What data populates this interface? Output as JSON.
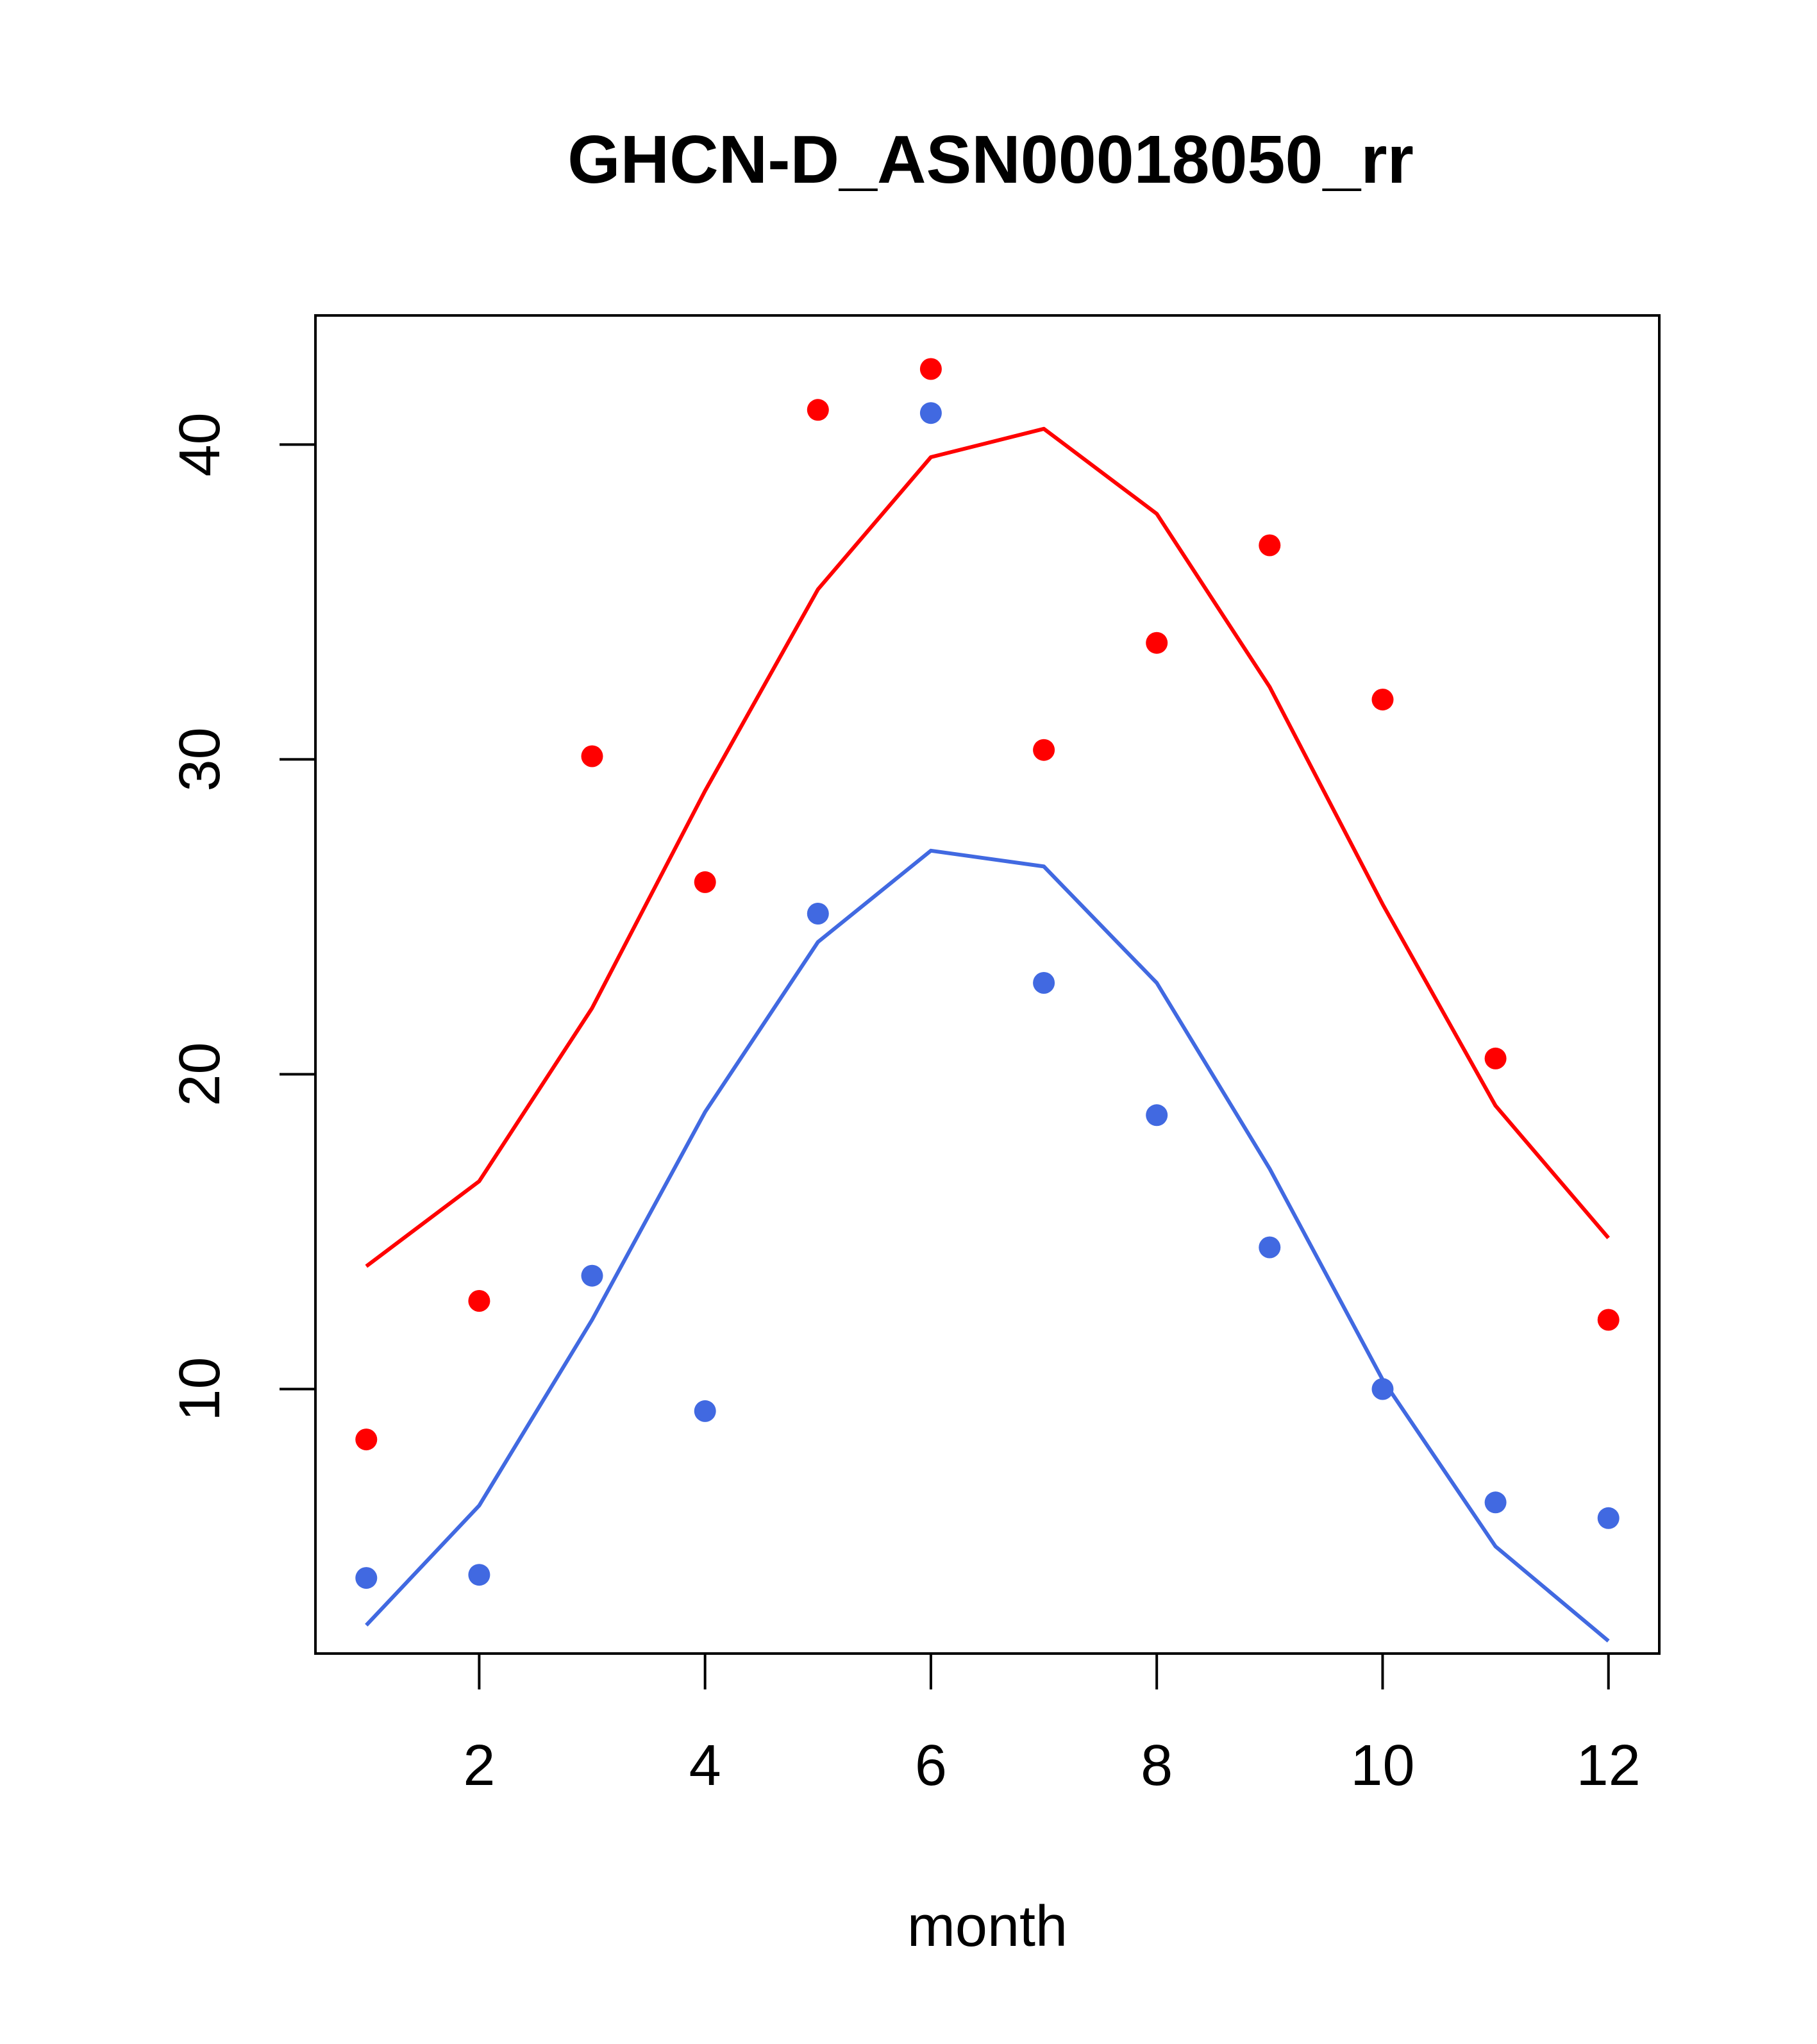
{
  "chart_data": {
    "type": "line",
    "title": "GHCN-D_ASN00018050_rr",
    "xlabel": "month",
    "ylabel": "",
    "xlim": [
      0.55,
      12.45
    ],
    "ylim": [
      1.6,
      44.1
    ],
    "x_ticks": [
      2,
      4,
      6,
      8,
      10,
      12
    ],
    "y_ticks": [
      10,
      20,
      30,
      40
    ],
    "x_tick_labels": [
      "2",
      "4",
      "6",
      "8",
      "10",
      "12"
    ],
    "y_tick_labels": [
      "10",
      "20",
      "30",
      "40"
    ],
    "grid": false,
    "legend": "none",
    "x": [
      1,
      2,
      3,
      4,
      5,
      6,
      7,
      8,
      9,
      10,
      11,
      12
    ],
    "series": [
      {
        "color": "#ff0000",
        "line": [
          13.9,
          16.6,
          22.1,
          29.0,
          35.4,
          39.6,
          40.5,
          37.8,
          32.3,
          25.4,
          19.0,
          14.8
        ],
        "points": [
          8.4,
          12.8,
          30.1,
          26.1,
          41.1,
          42.4,
          30.3,
          33.7,
          36.8,
          31.9,
          20.5,
          12.2
        ]
      },
      {
        "color": "#4169e1",
        "line": [
          2.5,
          6.3,
          12.2,
          18.8,
          24.2,
          27.1,
          26.6,
          22.9,
          17.0,
          10.3,
          5.0,
          2.0
        ],
        "points": [
          4.0,
          4.1,
          13.6,
          9.3,
          25.1,
          41.0,
          22.9,
          18.7,
          14.5,
          10.0,
          6.4,
          5.9
        ]
      }
    ]
  }
}
